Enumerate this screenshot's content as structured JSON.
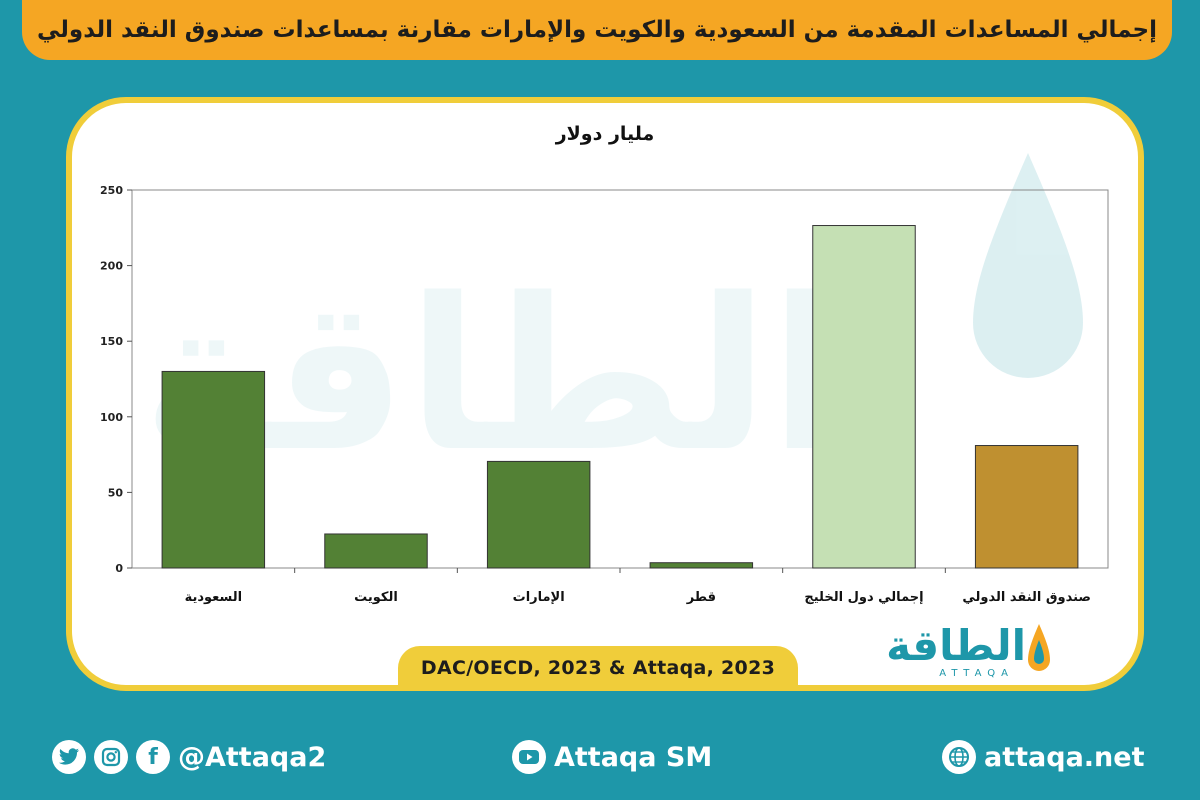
{
  "header": {
    "title": "إجمالي المساعدات المقدمة من السعودية والكويت والإمارات مقارنة بمساعدات صندوق النقد الدولي"
  },
  "chart_data": {
    "type": "bar",
    "title": "مليار دولار",
    "categories": [
      "السعودية",
      "الكويت",
      "الإمارات",
      "قطر",
      "إجمالي دول الخليج",
      "صندوق النقد الدولي"
    ],
    "values": [
      130,
      22.5,
      70.5,
      3.5,
      226.5,
      81
    ],
    "colors": [
      "#538135",
      "#538135",
      "#538135",
      "#538135",
      "#c5e0b4",
      "#bf9030"
    ],
    "ylim": [
      0,
      250
    ],
    "yticks": [
      0,
      50,
      100,
      150,
      200,
      250
    ],
    "grid": false,
    "legend": "none"
  },
  "source": {
    "text": "DAC/OECD, 2023 & Attaqa, 2023"
  },
  "brand": {
    "logo_ar": "الطاقة",
    "logo_en": "ATTAQA",
    "watermark": "الطاقة",
    "accent": "#1e97a9",
    "highlight": "#f5a623"
  },
  "footer": {
    "social_handle": "@Attaqa2",
    "youtube": "Attaqa SM",
    "website": "attaqa.net",
    "icons": [
      "twitter-icon",
      "instagram-icon",
      "facebook-icon",
      "youtube-icon",
      "globe-icon"
    ]
  }
}
